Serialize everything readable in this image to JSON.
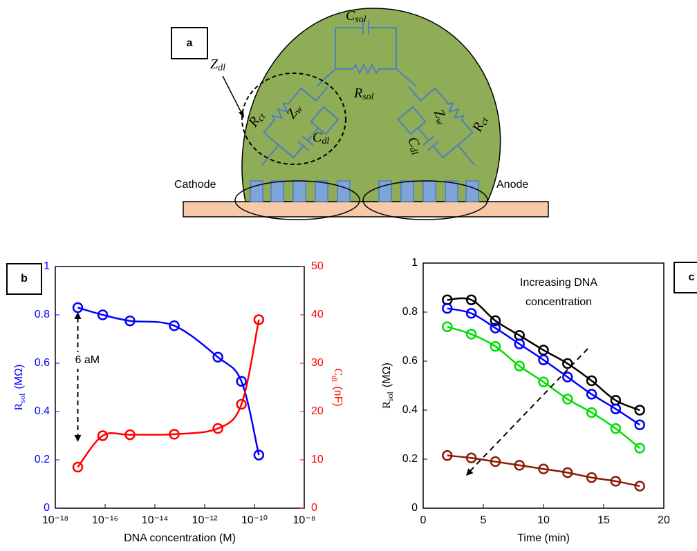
{
  "diagram": {
    "panel": "a",
    "c_sol": {
      "base": "C",
      "sub": "sol"
    },
    "r_sol": {
      "base": "R",
      "sub": "sol"
    },
    "z_dl": {
      "base": "Z",
      "sub": "dl"
    },
    "r_ct_left": {
      "base": "R",
      "sub": "ct"
    },
    "z_w_left": {
      "base": "Z",
      "sub": "w"
    },
    "c_dl_left": {
      "base": "C",
      "sub": "dl"
    },
    "r_ct_right": {
      "base": "R",
      "sub": "ct"
    },
    "z_w_right": {
      "base": "Z",
      "sub": "w"
    },
    "c_dl_right": {
      "base": "C",
      "sub": "dl"
    },
    "cathode": "Cathode",
    "anode": "Anode"
  },
  "chart_data": [
    {
      "type": "line",
      "panel": "b",
      "xscale": "log",
      "xlabel": "DNA concentration (M)",
      "ylabel": {
        "base": "R",
        "sub": "sol",
        "unit": "(MΩ)"
      },
      "y2label": {
        "base": "C",
        "sub": "dl",
        "unit": "(nF)"
      },
      "xlim": [
        1e-18,
        1e-08
      ],
      "xticks": [
        {
          "value": 1e-18,
          "label": "10⁻¹⁸"
        },
        {
          "value": 1e-16,
          "label": "10⁻¹⁶"
        },
        {
          "value": 1e-14,
          "label": "10⁻¹⁴"
        },
        {
          "value": 1e-12,
          "label": "10⁻¹²"
        },
        {
          "value": 1e-10,
          "label": "10⁻¹⁰"
        },
        {
          "value": 1e-08,
          "label": "10⁻⁸"
        }
      ],
      "ylim": [
        0,
        1
      ],
      "yticks": [
        0,
        0.2,
        0.4,
        0.6,
        0.8,
        1
      ],
      "y2lim": [
        0,
        50
      ],
      "y2ticks": [
        0,
        10,
        20,
        30,
        40,
        50
      ],
      "x": [
        8e-18,
        8e-17,
        1e-15,
        6e-14,
        3.4e-12,
        3e-11,
        1.5e-10
      ],
      "series": [
        {
          "color": "#0000ff",
          "axis": "y",
          "values": [
            0.83,
            0.8,
            0.775,
            0.755,
            0.625,
            0.525,
            0.22
          ]
        },
        {
          "color": "#ff0000",
          "axis": "y2",
          "values": [
            8.5,
            15,
            15.2,
            15.3,
            16.5,
            21.5,
            39
          ]
        }
      ],
      "annotation": "6 aM"
    },
    {
      "type": "line",
      "panel": "c",
      "xlabel": "Time (min)",
      "ylabel": {
        "base": "R",
        "sub": "sol",
        "unit": "(MΩ)"
      },
      "xlim": [
        0,
        20
      ],
      "xticks": [
        0,
        5,
        10,
        15,
        20
      ],
      "ylim": [
        0,
        1
      ],
      "yticks": [
        0,
        0.2,
        0.4,
        0.6,
        0.8,
        1
      ],
      "x": [
        2,
        4,
        6,
        8,
        10,
        12,
        14,
        16,
        18
      ],
      "series": [
        {
          "color": "#000000",
          "values": [
            0.85,
            0.85,
            0.765,
            0.705,
            0.645,
            0.59,
            0.52,
            0.44,
            0.4
          ]
        },
        {
          "color": "#0000ff",
          "values": [
            0.815,
            0.795,
            0.735,
            0.67,
            0.605,
            0.535,
            0.465,
            0.405,
            0.34
          ]
        },
        {
          "color": "#00dd00",
          "values": [
            0.74,
            0.71,
            0.66,
            0.58,
            0.515,
            0.445,
            0.39,
            0.325,
            0.245
          ]
        },
        {
          "color": "#8b1a00",
          "values": [
            0.215,
            0.205,
            0.19,
            0.175,
            0.16,
            0.145,
            0.125,
            0.11,
            0.09
          ]
        }
      ],
      "annotation": [
        "Increasing DNA",
        "concentration"
      ]
    }
  ]
}
